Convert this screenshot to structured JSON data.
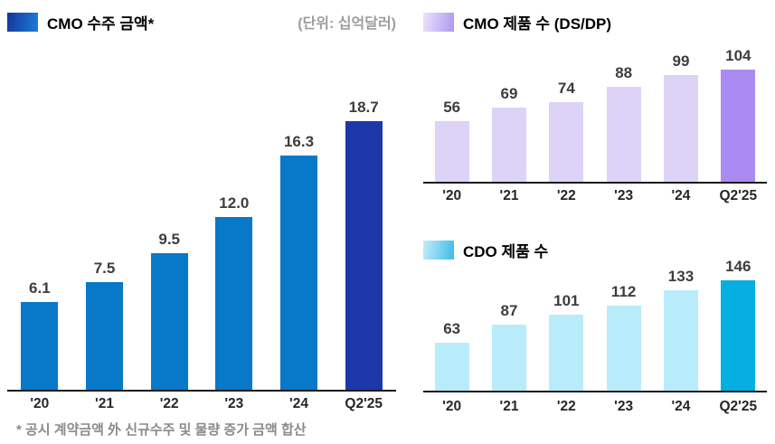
{
  "unit_label": "(단위: 십억달러)",
  "footnote": "* 공시 계약금액 外 신규수주 및 물량 증가 금액 합산",
  "chart_data": [
    {
      "id": "cmo-backlog",
      "type": "bar",
      "title": "CMO 수주 금액*",
      "unit": "십억달러",
      "categories": [
        "'20",
        "'21",
        "'22",
        "'23",
        "'24",
        "Q2'25"
      ],
      "values": [
        6.1,
        7.5,
        9.5,
        12.0,
        16.3,
        18.7
      ],
      "value_labels": [
        "6.1",
        "7.5",
        "9.5",
        "12.0",
        "16.3",
        "18.7"
      ],
      "ylim": [
        0,
        20
      ],
      "grid": "off",
      "legend_position": "top-left",
      "bar_color": "#0878C8",
      "highlight_color": "#1C38A8",
      "highlight_index": 5,
      "legend_gradient": [
        "#14359B",
        "#1B7FD8"
      ]
    },
    {
      "id": "cmo-products",
      "type": "bar",
      "title": "CMO 제품 수 (DS/DP)",
      "categories": [
        "'20",
        "'21",
        "'22",
        "'23",
        "'24",
        "Q2'25"
      ],
      "values": [
        56,
        69,
        74,
        88,
        99,
        104
      ],
      "value_labels": [
        "56",
        "69",
        "74",
        "88",
        "99",
        "104"
      ],
      "ylim": [
        0,
        125
      ],
      "grid": "off",
      "legend_position": "top-left",
      "bar_color": "#DDD3F7",
      "highlight_color": "#A98BF2",
      "highlight_index": 5,
      "legend_gradient": [
        "#EAE4FB",
        "#AE97EF"
      ]
    },
    {
      "id": "cdo-products",
      "type": "bar",
      "title": "CDO 제품 수",
      "categories": [
        "'20",
        "'21",
        "'22",
        "'23",
        "'24",
        "Q2'25"
      ],
      "values": [
        63,
        87,
        101,
        112,
        133,
        146
      ],
      "value_labels": [
        "63",
        "87",
        "101",
        "112",
        "133",
        "146"
      ],
      "ylim": [
        0,
        150
      ],
      "grid": "off",
      "legend_position": "top-left",
      "bar_color": "#B9ECFA",
      "highlight_color": "#05AEE1",
      "highlight_index": 5,
      "legend_gradient": [
        "#C6ECF8",
        "#3BBCEA"
      ]
    }
  ]
}
